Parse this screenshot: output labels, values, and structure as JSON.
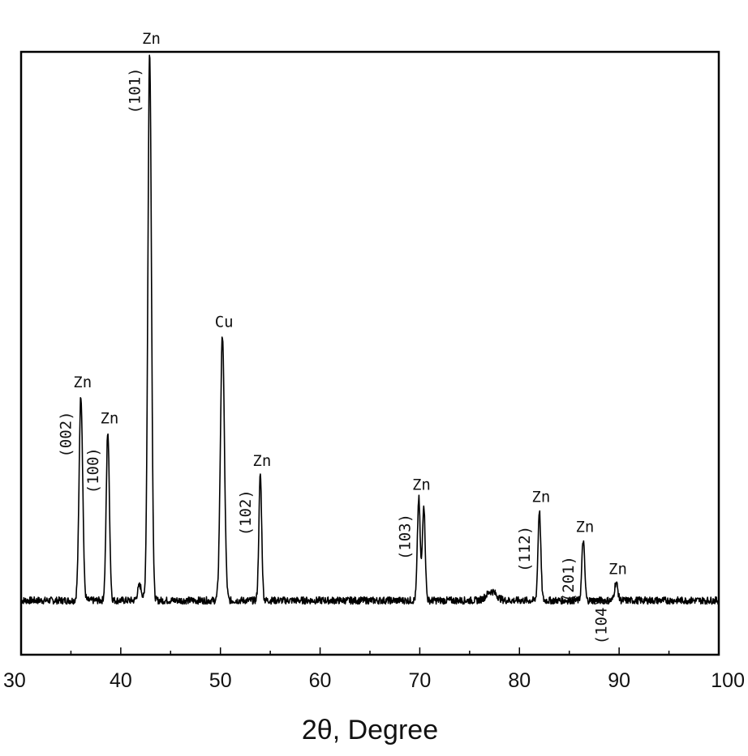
{
  "chart_data": {
    "type": "line",
    "title": "",
    "xlabel": "2θ, Degree",
    "ylabel": "",
    "xlim": [
      30,
      100
    ],
    "ylim": [
      0,
      100
    ],
    "x_ticks": [
      30,
      40,
      50,
      60,
      70,
      80,
      90,
      100
    ],
    "x_tick_labels": [
      "30",
      "40",
      "50",
      "60",
      "70",
      "80",
      "90",
      "100"
    ],
    "y_ticks_shown": false,
    "grid": false,
    "legend": "none",
    "line_color": "#000000",
    "baseline": 9,
    "series": [
      {
        "peaks": [
          {
            "x": 36.0,
            "y": 34,
            "width": 0.18
          },
          {
            "x": 38.7,
            "y": 28,
            "width": 0.16
          },
          {
            "x": 42.9,
            "y": 91,
            "width": 0.18
          },
          {
            "x": 50.2,
            "y": 44,
            "width": 0.2
          },
          {
            "x": 54.0,
            "y": 21,
            "width": 0.14
          },
          {
            "x": 69.9,
            "y": 17,
            "width": 0.14
          },
          {
            "x": 70.4,
            "y": 16,
            "width": 0.14
          },
          {
            "x": 82.0,
            "y": 15,
            "width": 0.14
          },
          {
            "x": 86.4,
            "y": 10,
            "width": 0.14
          },
          {
            "x": 89.7,
            "y": 3,
            "width": 0.16
          },
          {
            "x": 77.2,
            "y": 1.5,
            "width": 0.5
          },
          {
            "x": 41.9,
            "y": 2.5,
            "width": 0.2
          }
        ]
      }
    ],
    "annotations": [
      {
        "element": "Zn",
        "hkl": "(002)",
        "x": 36.0,
        "y": 34
      },
      {
        "element": "Zn",
        "hkl": "(100)",
        "x": 38.7,
        "y": 28
      },
      {
        "element": "Zn",
        "hkl": "(101)",
        "x": 42.9,
        "y": 91
      },
      {
        "element": "Cu",
        "hkl": "",
        "x": 50.2,
        "y": 44
      },
      {
        "element": "Zn",
        "hkl": "(102)",
        "x": 54.0,
        "y": 21
      },
      {
        "element": "Zn",
        "hkl": "(103)",
        "x": 70.0,
        "y": 17
      },
      {
        "element": "Zn",
        "hkl": "(112)",
        "x": 82.0,
        "y": 15
      },
      {
        "element": "Zn",
        "hkl": "(201)",
        "x": 86.4,
        "y": 10
      },
      {
        "element": "Zn",
        "hkl": "(104)",
        "x": 89.7,
        "y": 3
      }
    ]
  }
}
